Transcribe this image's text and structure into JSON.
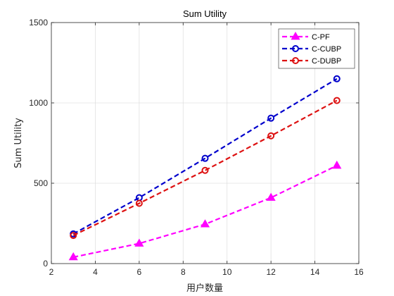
{
  "chart_data": {
    "type": "line",
    "title": "Sum Utility",
    "xlabel": "用户数量",
    "ylabel": "Sum Utility",
    "xlim": [
      2,
      16
    ],
    "ylim": [
      0,
      1500
    ],
    "xticks": [
      2,
      4,
      6,
      8,
      10,
      12,
      14,
      16
    ],
    "yticks": [
      0,
      500,
      1000,
      1500
    ],
    "grid": true,
    "legend_position": "top-right",
    "x": [
      3,
      6,
      9,
      12,
      15
    ],
    "series": [
      {
        "name": "C-PF",
        "values": [
          40,
          125,
          245,
          410,
          610
        ],
        "color": "#ff00ff",
        "marker": "triangle",
        "line_style": "dashed"
      },
      {
        "name": "C-CUBP",
        "values": [
          185,
          410,
          655,
          905,
          1150
        ],
        "color": "#0000cc",
        "marker": "circle",
        "line_style": "dashed"
      },
      {
        "name": "C-DUBP",
        "values": [
          175,
          375,
          580,
          795,
          1015
        ],
        "color": "#dd1111",
        "marker": "circle",
        "line_style": "dashed"
      }
    ]
  }
}
